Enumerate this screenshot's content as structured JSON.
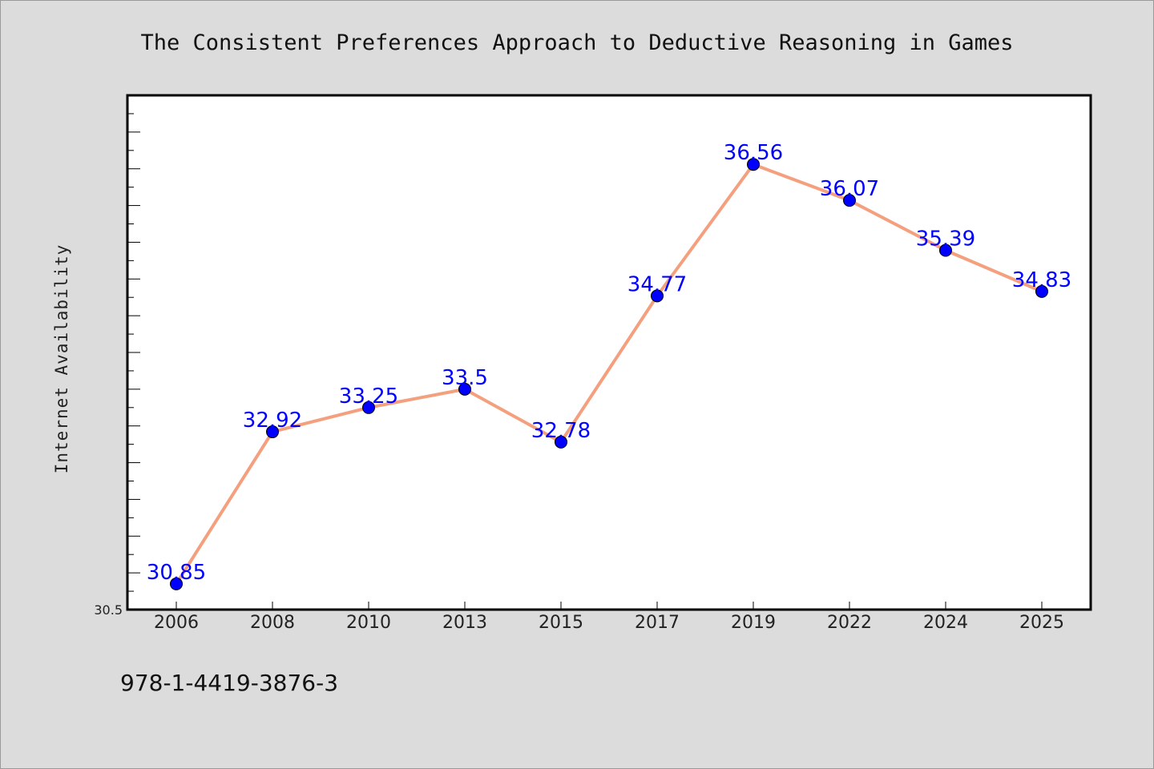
{
  "chart_data": {
    "type": "line",
    "title": "The Consistent Preferences Approach to Deductive Reasoning in Games",
    "xlabel": "",
    "ylabel": "Internet Availability",
    "categories": [
      "2006",
      "2008",
      "2010",
      "2013",
      "2015",
      "2017",
      "2019",
      "2022",
      "2024",
      "2025"
    ],
    "series": [
      {
        "values": [
          30.85,
          32.92,
          33.25,
          33.5,
          32.78,
          34.77,
          36.56,
          36.07,
          35.39,
          34.83
        ],
        "data_labels": [
          "30.85",
          "32.92",
          "33.25",
          "33.5",
          "32.78",
          "34.77",
          "36.56",
          "36.07",
          "35.39",
          "34.83"
        ]
      }
    ],
    "ylim": [
      30.5,
      37.5
    ],
    "yticks_labeled": [
      "30.5"
    ],
    "grid": false,
    "legend": "none",
    "colors": {
      "line": "#f4a07e",
      "marker": "#0000ff",
      "data_label": "#0000ff",
      "plot_background": "#ffffff",
      "page_background": "#dcdcdc"
    }
  },
  "footer": {
    "isbn": "978-1-4419-3876-3"
  }
}
